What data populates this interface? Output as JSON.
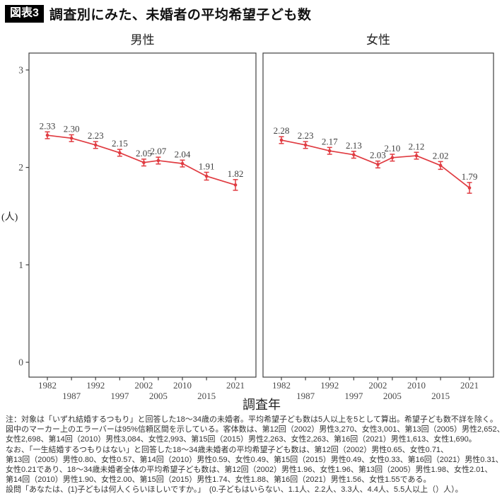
{
  "title": {
    "badge": "図表3",
    "text": "調査別にみた、未婚者の平均希望子ども数"
  },
  "colors": {
    "line": "#e03b41",
    "axis": "#3f3f3f",
    "tick_text": "#4a4a4a",
    "data_label": "#3f3f3f",
    "badge_bg": "#000000",
    "badge_fg": "#ffffff"
  },
  "chart_data": {
    "type": "line",
    "x": [
      1982,
      1987,
      1992,
      1997,
      2002,
      2005,
      2010,
      2015,
      2021
    ],
    "series": [
      {
        "name": "男性",
        "values": [
          2.33,
          2.3,
          2.23,
          2.15,
          2.05,
          2.07,
          2.04,
          1.91,
          1.82
        ]
      },
      {
        "name": "女性",
        "values": [
          2.28,
          2.23,
          2.17,
          2.13,
          2.03,
          2.1,
          2.12,
          2.02,
          1.79
        ]
      }
    ],
    "ci_halfwidth": [
      0.035,
      0.035,
      0.035,
      0.035,
      0.035,
      0.035,
      0.035,
      0.04,
      0.055
    ],
    "error_bars": "95%信頼区間",
    "xlabel": "調査年",
    "ylabel": "(人)",
    "yticks": [
      0,
      1,
      2,
      3
    ],
    "ylim": [
      -0.15,
      3.2
    ],
    "xticks_row1": [
      1982,
      1992,
      2002,
      2010,
      2021
    ],
    "xticks_row2": [
      1987,
      1997,
      2005,
      2015
    ],
    "grid": false,
    "legend": "none (facet titles above each panel)"
  },
  "notes": {
    "lines": [
      "注：対象は「いずれ結婚するつもり」と回答した18〜34歳の未婚者。平均希望子ども数は5人以上を5として算出。希望子ども数不詳を除く。",
      "図中のマーカー上のエラーバーは95%信頼区間を示している。客体数は、第12回（2002）男性3,270、女性3,001、第13回（2005）男性2,652、",
      "女性2,698、第14回（2010）男性3,084、女性2,993、第15回（2015）男性2,263、女性2,263、第16回（2021）男性1,613、女性1,690。",
      "なお、「一生結婚するつもりはない」と回答した18〜34歳未婚者の平均希望子ども数は、第12回（2002）男性0.65、女性0.71、",
      "第13回（2005）男性0.80、女性0.57、第14回（2010）男性0.59、女性0.49、第15回（2015）男性0.49、女性0.33、第16回（2021）男性0.31、",
      "女性0.21であり、18〜34歳未婚者全体の平均希望子ども数は、第12回（2002）男性1.96、女性1.96、第13回（2005）男性1.98、女性2.01、",
      "第14回（2010）男性1.90、女性2.00、第15回（2015）男性1.74、女性1.88、第16回（2021）男性1.56、女性1.55である。",
      "設問「あなたは、(1)子どもは何人くらいほしいですか。」　(0.子どもはいらない、1.1人、2.2人、3.3人、4.4人、5.5人以上（）人）。"
    ]
  }
}
